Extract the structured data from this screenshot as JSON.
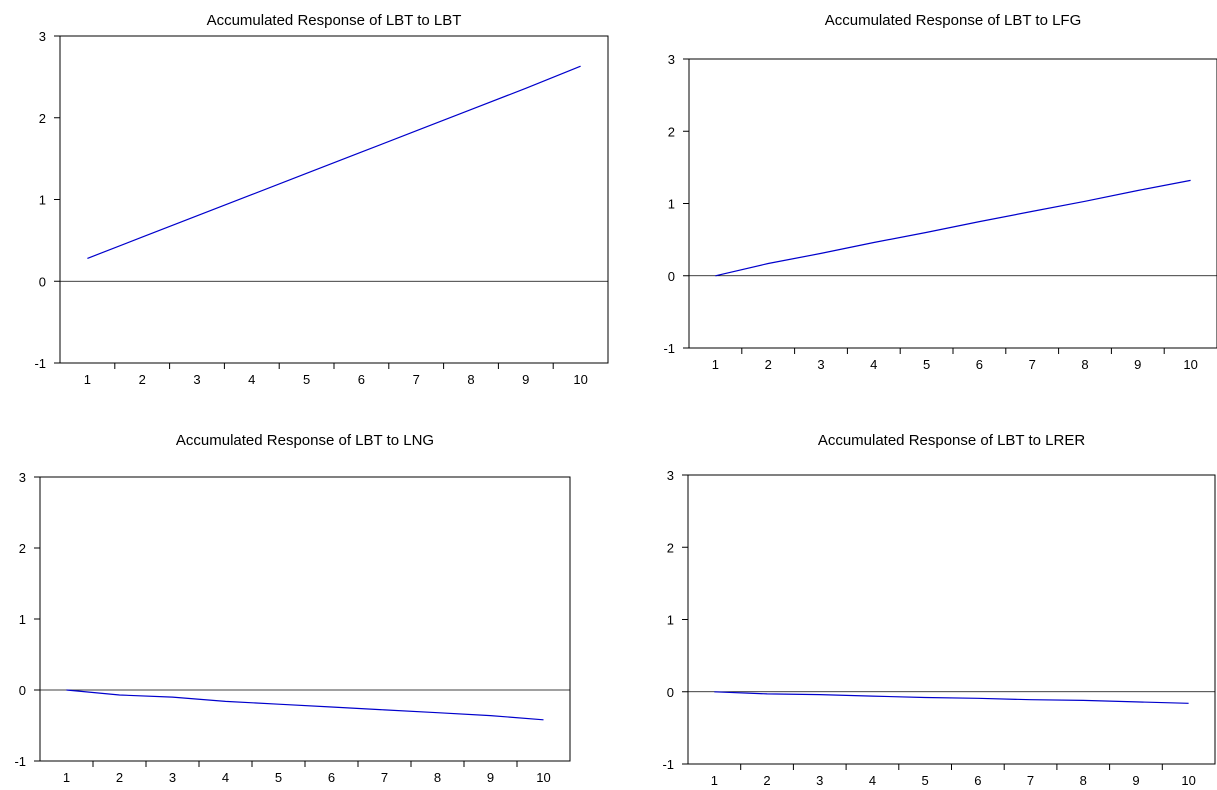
{
  "colors": {
    "series": "#0000cc",
    "axis": "#000000",
    "background": "#ffffff"
  },
  "chart_data": [
    {
      "type": "line",
      "title": "Accumulated Response of LBT to LBT",
      "x": [
        1,
        2,
        3,
        4,
        5,
        6,
        7,
        8,
        9,
        10
      ],
      "series": [
        {
          "values": [
            0.28,
            0.54,
            0.8,
            1.06,
            1.32,
            1.58,
            1.84,
            2.1,
            2.36,
            2.63
          ]
        }
      ],
      "xlim": [
        0.5,
        10.5
      ],
      "ylim": [
        -1,
        3
      ],
      "yticks": [
        -1,
        0,
        1,
        2,
        3
      ],
      "zero_line": true,
      "grid": false
    },
    {
      "type": "line",
      "title": "Accumulated Response of LBT to LFG",
      "x": [
        1,
        2,
        3,
        4,
        5,
        6,
        7,
        8,
        9,
        10
      ],
      "series": [
        {
          "values": [
            0.0,
            0.17,
            0.31,
            0.46,
            0.6,
            0.75,
            0.89,
            1.03,
            1.18,
            1.32
          ]
        }
      ],
      "xlim": [
        0.5,
        10.5
      ],
      "ylim": [
        -1,
        3
      ],
      "yticks": [
        -1,
        0,
        1,
        2,
        3
      ],
      "zero_line": true,
      "grid": false
    },
    {
      "type": "line",
      "title": "Accumulated Response of LBT to LNG",
      "x": [
        1,
        2,
        3,
        4,
        5,
        6,
        7,
        8,
        9,
        10
      ],
      "series": [
        {
          "values": [
            0.0,
            -0.07,
            -0.1,
            -0.16,
            -0.2,
            -0.24,
            -0.28,
            -0.32,
            -0.36,
            -0.42
          ]
        }
      ],
      "xlim": [
        0.5,
        10.5
      ],
      "ylim": [
        -1,
        3
      ],
      "yticks": [
        -1,
        0,
        1,
        2,
        3
      ],
      "zero_line": true,
      "grid": false
    },
    {
      "type": "line",
      "title": "Accumulated Response of LBT to LRER",
      "x": [
        1,
        2,
        3,
        4,
        5,
        6,
        7,
        8,
        9,
        10
      ],
      "series": [
        {
          "values": [
            0.0,
            -0.03,
            -0.04,
            -0.06,
            -0.08,
            -0.09,
            -0.11,
            -0.12,
            -0.14,
            -0.16
          ]
        }
      ],
      "xlim": [
        0.5,
        10.5
      ],
      "ylim": [
        -1,
        3
      ],
      "yticks": [
        -1,
        0,
        1,
        2,
        3
      ],
      "zero_line": true,
      "grid": false
    }
  ]
}
